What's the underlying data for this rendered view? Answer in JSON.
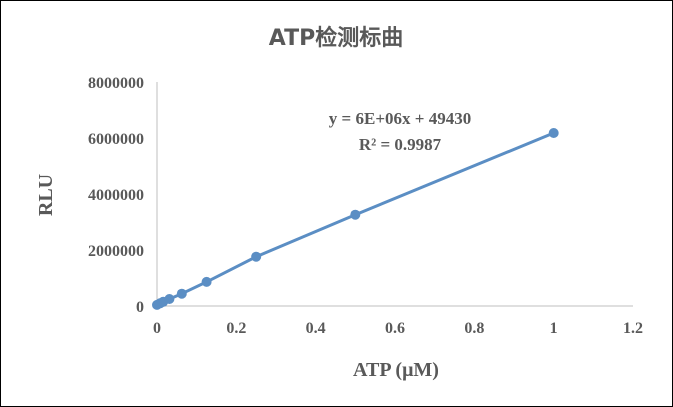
{
  "chart_data": {
    "type": "scatter",
    "title": "ATP检测标曲",
    "xlabel": "ATP (μM)",
    "ylabel": "RLU",
    "xlim": [
      0,
      1.2
    ],
    "ylim": [
      0,
      8000000
    ],
    "x_ticks": [
      "0",
      "0.2",
      "0.4",
      "0.6",
      "0.8",
      "1",
      "1.2"
    ],
    "y_ticks": [
      "0",
      "2000000",
      "4000000",
      "6000000",
      "8000000"
    ],
    "grid": false,
    "legend": "none",
    "series": [
      {
        "x": [
          0,
          0.0078125,
          0.015625,
          0.03125,
          0.0625,
          0.125,
          0.25,
          0.5,
          1
        ],
        "y": [
          40000,
          95000,
          150000,
          250000,
          440000,
          860000,
          1760000,
          3260000,
          6180000
        ],
        "color": "#5b8ec4",
        "line": "connected"
      }
    ],
    "annotations": {
      "equation": "y = 6E+06x + 49430",
      "r_squared": "R² = 0.9987"
    }
  }
}
